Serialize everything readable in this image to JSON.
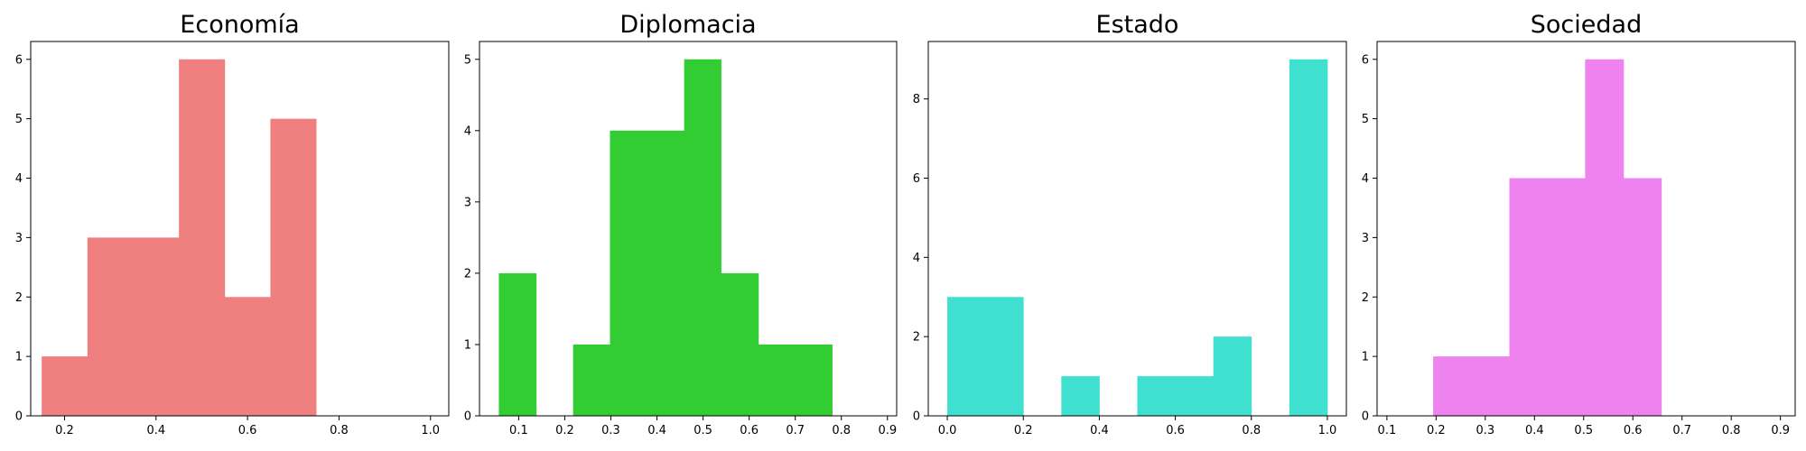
{
  "chart_data": [
    {
      "type": "bar",
      "title": "Economía",
      "color": "#f08080",
      "xlim": [
        0.126,
        1.04
      ],
      "ylim": [
        0,
        6.3
      ],
      "xticks": [
        0.2,
        0.4,
        0.6,
        0.8,
        1.0
      ],
      "xtick_labels": [
        "0.2",
        "0.4",
        "0.6",
        "0.8",
        "1.0"
      ],
      "yticks": [
        0,
        1,
        2,
        3,
        4,
        5,
        6
      ],
      "ytick_labels": [
        "0",
        "1",
        "2",
        "3",
        "4",
        "5",
        "6"
      ],
      "bins": [
        {
          "x0": 0.15,
          "x1": 0.25,
          "count": 1
        },
        {
          "x0": 0.25,
          "x1": 0.35,
          "count": 3
        },
        {
          "x0": 0.35,
          "x1": 0.45,
          "count": 3
        },
        {
          "x0": 0.45,
          "x1": 0.55,
          "count": 6
        },
        {
          "x0": 0.55,
          "x1": 0.65,
          "count": 2
        },
        {
          "x0": 0.65,
          "x1": 0.75,
          "count": 5
        }
      ]
    },
    {
      "type": "bar",
      "title": "Diplomacia",
      "color": "#32cd32",
      "xlim": [
        0.015,
        0.92
      ],
      "ylim": [
        0,
        5.25
      ],
      "xticks": [
        0.1,
        0.2,
        0.3,
        0.4,
        0.5,
        0.6,
        0.7,
        0.8,
        0.9
      ],
      "xtick_labels": [
        "0.1",
        "0.2",
        "0.3",
        "0.4",
        "0.5",
        "0.6",
        "0.7",
        "0.8",
        "0.9"
      ],
      "yticks": [
        0,
        1,
        2,
        3,
        4,
        5
      ],
      "ytick_labels": [
        "0",
        "1",
        "2",
        "3",
        "4",
        "5"
      ],
      "bins": [
        {
          "x0": 0.057,
          "x1": 0.138,
          "count": 2
        },
        {
          "x0": 0.218,
          "x1": 0.298,
          "count": 1
        },
        {
          "x0": 0.298,
          "x1": 0.379,
          "count": 4
        },
        {
          "x0": 0.379,
          "x1": 0.459,
          "count": 4
        },
        {
          "x0": 0.459,
          "x1": 0.539,
          "count": 5
        },
        {
          "x0": 0.539,
          "x1": 0.62,
          "count": 2
        },
        {
          "x0": 0.62,
          "x1": 0.7,
          "count": 1
        },
        {
          "x0": 0.7,
          "x1": 0.78,
          "count": 1
        }
      ]
    },
    {
      "type": "bar",
      "title": "Estado",
      "color": "#40e0d0",
      "xlim": [
        -0.05,
        1.05
      ],
      "ylim": [
        0,
        9.45
      ],
      "xticks": [
        0.0,
        0.2,
        0.4,
        0.6,
        0.8,
        1.0
      ],
      "xtick_labels": [
        "0.0",
        "0.2",
        "0.4",
        "0.6",
        "0.8",
        "1.0"
      ],
      "yticks": [
        0,
        2,
        4,
        6,
        8
      ],
      "ytick_labels": [
        "0",
        "2",
        "4",
        "6",
        "8"
      ],
      "bins": [
        {
          "x0": 0.0,
          "x1": 0.1,
          "count": 3
        },
        {
          "x0": 0.1,
          "x1": 0.2,
          "count": 3
        },
        {
          "x0": 0.3,
          "x1": 0.4,
          "count": 1
        },
        {
          "x0": 0.5,
          "x1": 0.6,
          "count": 1
        },
        {
          "x0": 0.6,
          "x1": 0.7,
          "count": 1
        },
        {
          "x0": 0.7,
          "x1": 0.8,
          "count": 2
        },
        {
          "x0": 0.9,
          "x1": 1.0,
          "count": 9
        }
      ]
    },
    {
      "type": "bar",
      "title": "Sociedad",
      "color": "#ee82ee",
      "xlim": [
        0.08,
        0.93
      ],
      "ylim": [
        0,
        6.3
      ],
      "xticks": [
        0.1,
        0.2,
        0.3,
        0.4,
        0.5,
        0.6,
        0.7,
        0.8,
        0.9
      ],
      "xtick_labels": [
        "0.1",
        "0.2",
        "0.3",
        "0.4",
        "0.5",
        "0.6",
        "0.7",
        "0.8",
        "0.9"
      ],
      "yticks": [
        0,
        1,
        2,
        3,
        4,
        5,
        6
      ],
      "ytick_labels": [
        "0",
        "1",
        "2",
        "3",
        "4",
        "5",
        "6"
      ],
      "bins": [
        {
          "x0": 0.194,
          "x1": 0.271,
          "count": 1
        },
        {
          "x0": 0.271,
          "x1": 0.349,
          "count": 1
        },
        {
          "x0": 0.349,
          "x1": 0.426,
          "count": 4
        },
        {
          "x0": 0.426,
          "x1": 0.503,
          "count": 4
        },
        {
          "x0": 0.503,
          "x1": 0.581,
          "count": 6
        },
        {
          "x0": 0.581,
          "x1": 0.658,
          "count": 4
        }
      ]
    }
  ]
}
